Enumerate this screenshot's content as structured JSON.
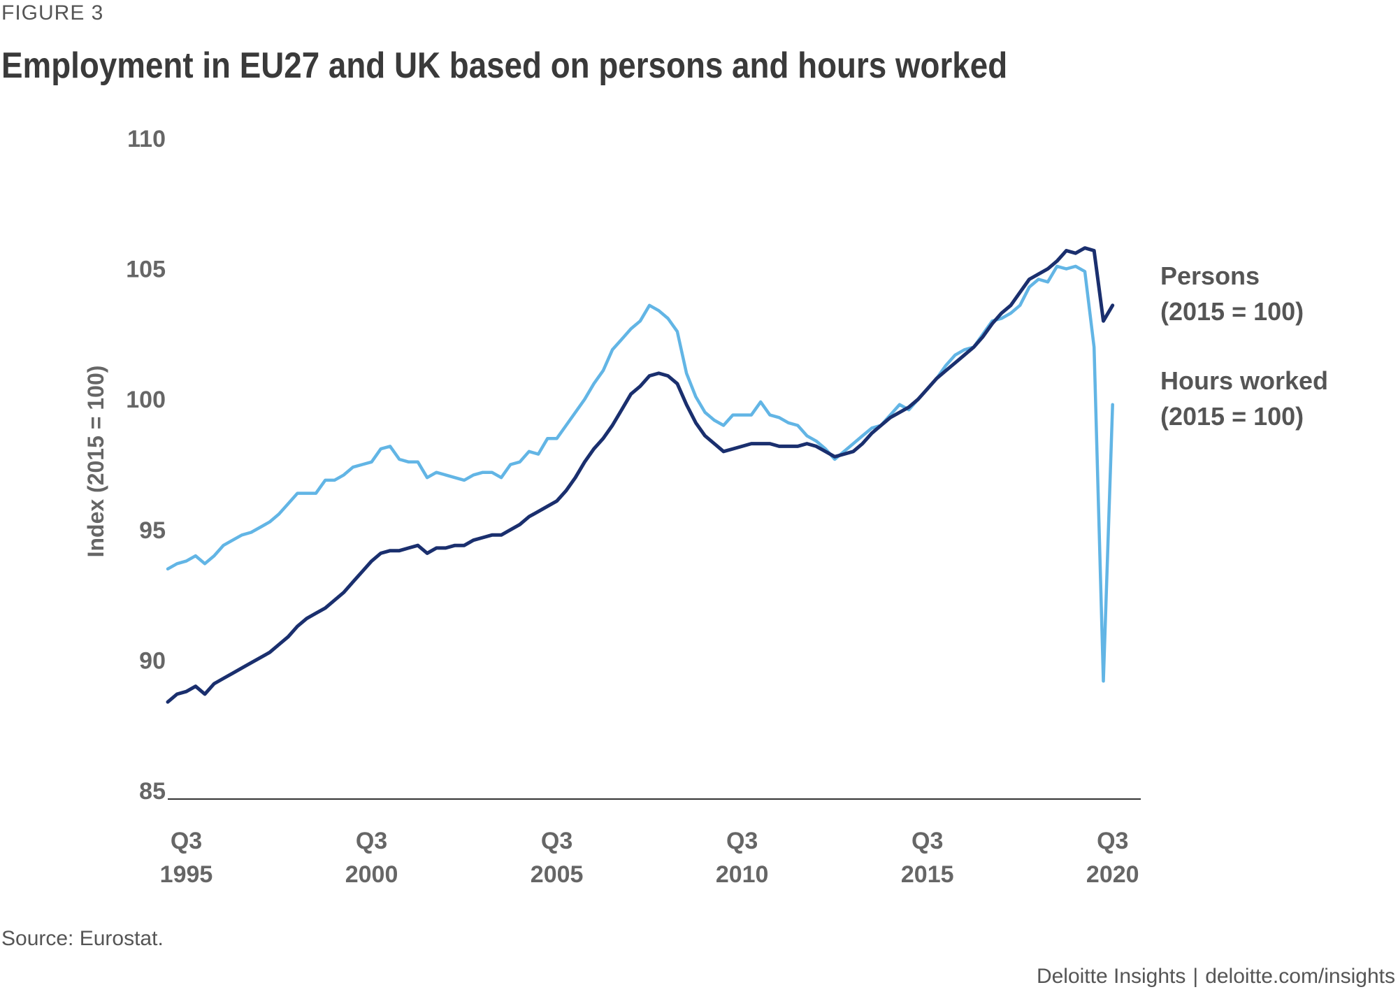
{
  "figure_label": "FIGURE 3",
  "title": "Employment in EU27 and UK based on persons and hours worked",
  "source": "Source: Eurostat.",
  "footer": {
    "brand": "Deloitte Insights",
    "separator": "|",
    "url": "deloitte.com/insights"
  },
  "colors": {
    "persons": "#1a2f6e",
    "hours": "#62b5e5",
    "axis_text": "#666666",
    "axis_line": "#333333"
  },
  "chart_data": {
    "type": "line",
    "title": "Employment in EU27 and UK based on persons and hours worked",
    "ylabel": "Index (2015 = 100)",
    "xlabel": "",
    "ylim": [
      85,
      110
    ],
    "yticks": [
      85,
      90,
      95,
      100,
      105,
      110
    ],
    "x_start": "1995Q1",
    "x_end": "2020Q4",
    "xticks": [
      {
        "quarter": "1995Q3",
        "line1": "Q3",
        "line2": "1995"
      },
      {
        "quarter": "2000Q3",
        "line1": "Q3",
        "line2": "2000"
      },
      {
        "quarter": "2005Q3",
        "line1": "Q3",
        "line2": "2005"
      },
      {
        "quarter": "2010Q3",
        "line1": "Q3",
        "line2": "2010"
      },
      {
        "quarter": "2015Q3",
        "line1": "Q3",
        "line2": "2015"
      },
      {
        "quarter": "2020Q3",
        "line1": "Q3",
        "line2": "2020"
      }
    ],
    "grid": false,
    "legend": "direct labels at right",
    "series": [
      {
        "name_line1": "Persons",
        "name_line2": "(2015 = 100)",
        "values": [
          88.4,
          88.7,
          88.8,
          89.0,
          88.7,
          89.1,
          89.3,
          89.5,
          89.7,
          89.9,
          90.1,
          90.3,
          90.6,
          90.9,
          91.3,
          91.6,
          91.8,
          92.0,
          92.3,
          92.6,
          93.0,
          93.4,
          93.8,
          94.1,
          94.2,
          94.2,
          94.3,
          94.4,
          94.1,
          94.3,
          94.3,
          94.4,
          94.4,
          94.6,
          94.7,
          94.8,
          94.8,
          95.0,
          95.2,
          95.5,
          95.7,
          95.9,
          96.1,
          96.5,
          97.0,
          97.6,
          98.1,
          98.5,
          99.0,
          99.6,
          100.2,
          100.5,
          100.9,
          101.0,
          100.9,
          100.6,
          99.8,
          99.1,
          98.6,
          98.3,
          98.0,
          98.1,
          98.2,
          98.3,
          98.3,
          98.3,
          98.2,
          98.2,
          98.2,
          98.3,
          98.2,
          98.0,
          97.8,
          97.9,
          98.0,
          98.3,
          98.7,
          99.0,
          99.3,
          99.5,
          99.7,
          100.0,
          100.4,
          100.8,
          101.1,
          101.4,
          101.7,
          102.0,
          102.4,
          102.9,
          103.3,
          103.6,
          104.1,
          104.6,
          104.8,
          105.0,
          105.3,
          105.7,
          105.6,
          105.8,
          105.7,
          103.0,
          103.6
        ],
        "color": "#1a2f6e"
      },
      {
        "name_line1": "Hours worked",
        "name_line2": "(2015 = 100)",
        "values": [
          93.5,
          93.7,
          93.8,
          94.0,
          93.7,
          94.0,
          94.4,
          94.6,
          94.8,
          94.9,
          95.1,
          95.3,
          95.6,
          96.0,
          96.4,
          96.4,
          96.4,
          96.9,
          96.9,
          97.1,
          97.4,
          97.5,
          97.6,
          98.1,
          98.2,
          97.7,
          97.6,
          97.6,
          97.0,
          97.2,
          97.1,
          97.0,
          96.9,
          97.1,
          97.2,
          97.2,
          97.0,
          97.5,
          97.6,
          98.0,
          97.9,
          98.5,
          98.5,
          99.0,
          99.5,
          100.0,
          100.6,
          101.1,
          101.9,
          102.3,
          102.7,
          103.0,
          103.6,
          103.4,
          103.1,
          102.6,
          101.0,
          100.1,
          99.5,
          99.2,
          99.0,
          99.4,
          99.4,
          99.4,
          99.9,
          99.4,
          99.3,
          99.1,
          99.0,
          98.6,
          98.4,
          98.1,
          97.7,
          98.0,
          98.3,
          98.6,
          98.9,
          99.0,
          99.4,
          99.8,
          99.6,
          100.0,
          100.4,
          100.8,
          101.3,
          101.7,
          101.9,
          102.0,
          102.5,
          103.0,
          103.1,
          103.3,
          103.6,
          104.3,
          104.6,
          104.5,
          105.1,
          105.0,
          105.1,
          104.9,
          102.0,
          89.2,
          99.8
        ],
        "color": "#62b5e5"
      }
    ]
  }
}
